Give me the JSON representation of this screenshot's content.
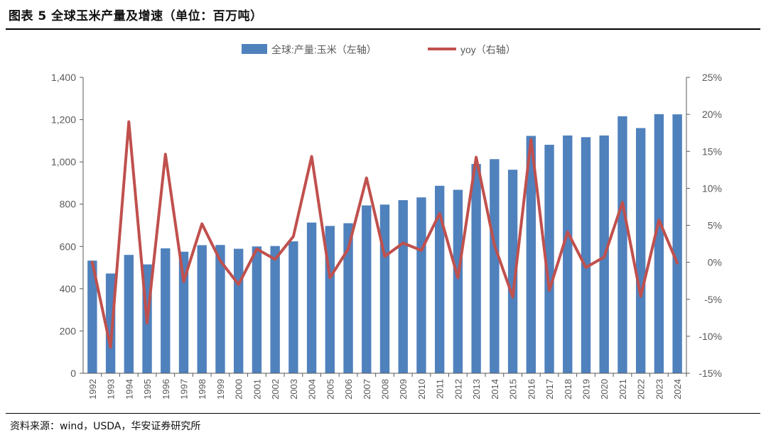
{
  "header": {
    "title": "图表 5 全球玉米产量及增速（单位：百万吨）"
  },
  "footer": {
    "source": "资料来源：wind，USDA，华安证券研究所"
  },
  "colors": {
    "bar": "#4F81BD",
    "line": "#C0504D",
    "axis": "#595959",
    "text": "#595959"
  },
  "chart_data": {
    "type": "bar",
    "title": "图表 5 全球玉米产量及增速（单位：百万吨）",
    "categories": [
      "1992",
      "1993",
      "1994",
      "1995",
      "1996",
      "1997",
      "1998",
      "1999",
      "2000",
      "2001",
      "2002",
      "2003",
      "2004",
      "2005",
      "2006",
      "2007",
      "2008",
      "2009",
      "2010",
      "2011",
      "2012",
      "2013",
      "2014",
      "2015",
      "2016",
      "2017",
      "2018",
      "2019",
      "2020",
      "2021",
      "2022",
      "2023",
      "2024"
    ],
    "series": [
      {
        "name": "全球:产量:玉米（左轴）",
        "type": "bar",
        "axis": "left",
        "values": [
          533,
          472,
          560,
          515,
          591,
          575,
          606,
          607,
          589,
          600,
          602,
          624,
          713,
          697,
          710,
          794,
          798,
          819,
          832,
          887,
          868,
          990,
          1013,
          963,
          1123,
          1081,
          1125,
          1117,
          1125,
          1216,
          1160,
          1226,
          1225
        ]
      },
      {
        "name": "yoy（右轴）",
        "type": "line",
        "axis": "right",
        "values": [
          0.0,
          -11.5,
          19.0,
          -8.2,
          14.6,
          -2.6,
          5.2,
          0.2,
          -3.0,
          1.8,
          0.4,
          3.5,
          14.3,
          -2.1,
          1.8,
          11.4,
          0.8,
          2.6,
          1.6,
          6.6,
          -2.1,
          14.2,
          2.3,
          -4.7,
          16.6,
          -3.8,
          4.1,
          -0.7,
          0.7,
          8.1,
          -4.6,
          5.7,
          -0.1
        ]
      }
    ],
    "left_axis": {
      "min": 0,
      "max": 1400,
      "step": 200,
      "ticks": [
        "0",
        "200",
        "400",
        "600",
        "800",
        "1,000",
        "1,200",
        "1,400"
      ]
    },
    "right_axis": {
      "min": -15,
      "max": 25,
      "step": 5,
      "ticks": [
        "-15%",
        "-10%",
        "-5%",
        "0%",
        "5%",
        "10%",
        "15%",
        "20%",
        "25%"
      ]
    },
    "legend_placement": "top-center",
    "grid": false
  }
}
